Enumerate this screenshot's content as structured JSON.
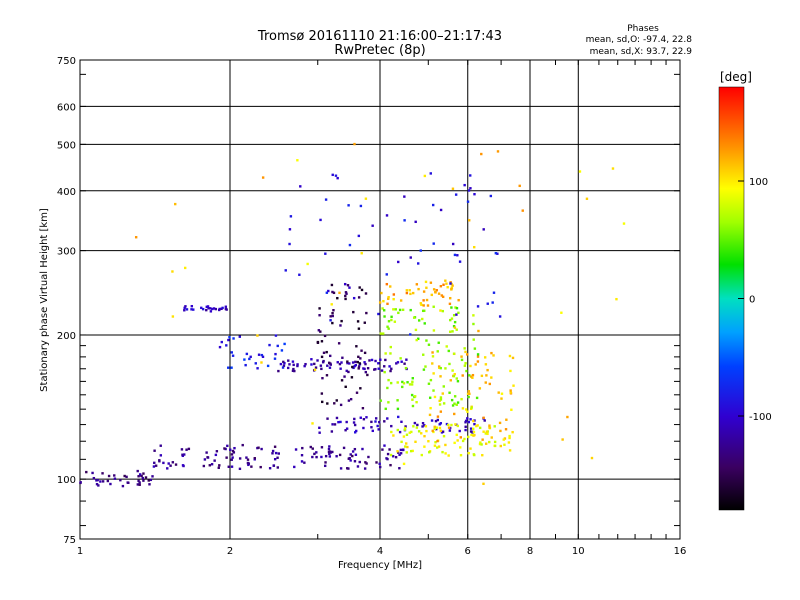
{
  "chart_data": {
    "type": "scatter",
    "title": "Tromsø 20161110 21:16:00–21:17:43",
    "subtitle": "RwPretec (8p)",
    "xlabel": "Frequency [MHz]",
    "ylabel": "Stationary phase Virtual Height [km]",
    "x_scale": "log",
    "y_scale": "log",
    "xlim": [
      1,
      16
    ],
    "ylim": [
      75,
      750
    ],
    "x_ticks": [
      1,
      2,
      4,
      6,
      8,
      10,
      16
    ],
    "y_ticks": [
      75,
      100,
      200,
      300,
      400,
      500,
      600,
      750
    ],
    "grid": true,
    "stats": {
      "heading": "Phases",
      "line_o": "mean, sd,O: -97.4, 22.8",
      "line_x": "mean, sd,X:  93.7, 22.9"
    },
    "colorbar": {
      "label": "[deg]",
      "range": [
        -180,
        180
      ],
      "ticks": [
        100,
        0,
        -100
      ]
    },
    "traces": [
      {
        "name": "",
        "phase": -130,
        "x_range": [
          1.0,
          1.4
        ],
        "h_range": [
          96,
          104
        ],
        "n": 40
      },
      {
        "name": "",
        "phase": -125,
        "x_range": [
          1.4,
          4.5
        ],
        "h_range": [
          105,
          118
        ],
        "n": 140
      },
      {
        "name": "",
        "phase": -110,
        "x_range": [
          3.0,
          6.5
        ],
        "h_range": [
          125,
          135
        ],
        "n": 70
      },
      {
        "name": "",
        "phase": -115,
        "x_range": [
          2.5,
          4.6
        ],
        "h_range": [
          168,
          178
        ],
        "n": 70
      },
      {
        "name": "",
        "phase": -105,
        "x_range": [
          1.6,
          2.0
        ],
        "h_range": [
          224,
          230
        ],
        "n": 25
      },
      {
        "name": "",
        "phase": -150,
        "x_range": [
          3.0,
          3.8
        ],
        "h_range": [
          140,
          260
        ],
        "n": 70
      },
      {
        "name": "",
        "phase": -80,
        "x_range": [
          1.9,
          2.6
        ],
        "h_range": [
          170,
          200
        ],
        "n": 30
      },
      {
        "name": "",
        "phase": 90,
        "x_range": [
          4.2,
          7.3
        ],
        "h_range": [
          112,
          130
        ],
        "n": 90
      },
      {
        "name": "",
        "phase": 115,
        "x_range": [
          5.0,
          7.5
        ],
        "h_range": [
          120,
          185
        ],
        "n": 80
      },
      {
        "name": "",
        "phase": 120,
        "x_range": [
          4.0,
          5.8
        ],
        "h_range": [
          230,
          260
        ],
        "n": 50
      },
      {
        "name": "",
        "phase": 60,
        "x_range": [
          4.0,
          6.3
        ],
        "h_range": [
          140,
          230
        ],
        "n": 120
      },
      {
        "name": "",
        "phase": -90,
        "x_range": [
          2.4,
          7.0
        ],
        "h_range": [
          200,
          440
        ],
        "n": 60
      },
      {
        "name": "",
        "phase": 110,
        "x_range": [
          1.2,
          13.0
        ],
        "h_range": [
          95,
          520
        ],
        "n": 40
      }
    ]
  }
}
